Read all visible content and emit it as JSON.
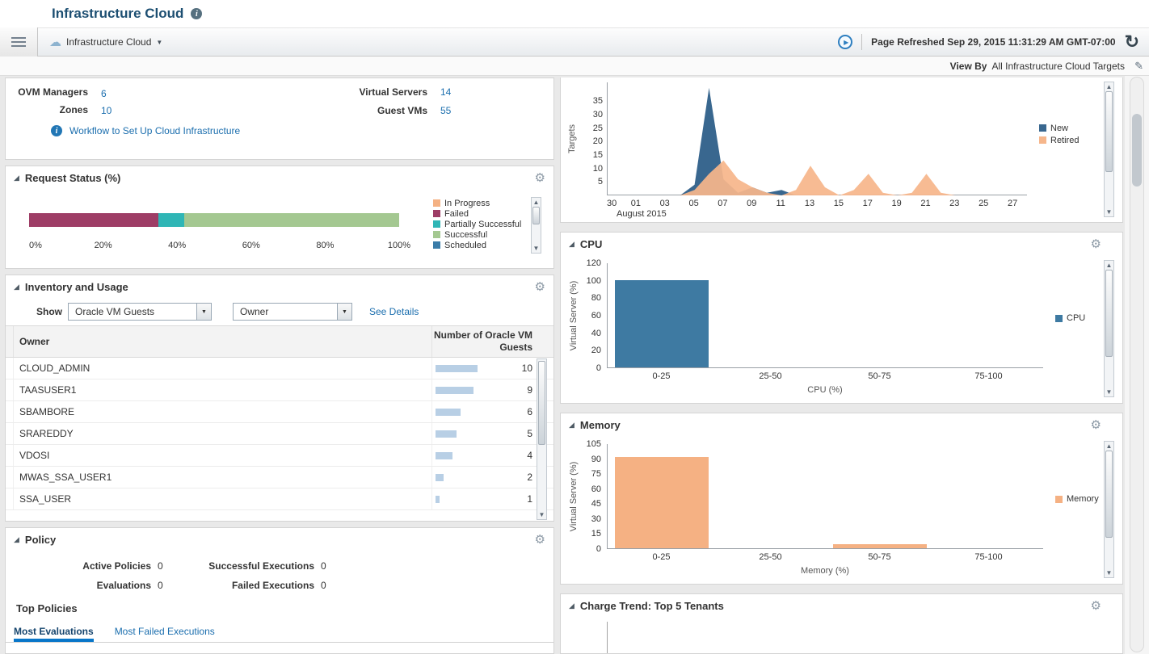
{
  "page": {
    "title": "Infrastructure Cloud"
  },
  "toolbar": {
    "breadcrumb": "Infrastructure Cloud",
    "refreshed_label": "Page Refreshed",
    "refreshed_value": "Sep 29, 2015 11:31:29 AM GMT-07:00"
  },
  "viewbar": {
    "label": "View By",
    "value": "All Infrastructure Cloud Targets"
  },
  "overview": {
    "stats": [
      {
        "label": "OVM Managers",
        "value": "6"
      },
      {
        "label": "Zones",
        "value": "10"
      },
      {
        "label": "Virtual Servers",
        "value": "14"
      },
      {
        "label": "Guest VMs",
        "value": "55"
      }
    ],
    "workflow_link": "Workflow to Set Up Cloud Infrastructure"
  },
  "request_status": {
    "title": "Request Status (%)",
    "axis_ticks": [
      "0%",
      "20%",
      "40%",
      "60%",
      "80%",
      "100%"
    ],
    "legend": [
      {
        "label": "In Progress",
        "color": "#f4b183"
      },
      {
        "label": "Failed",
        "color": "#9e3d66"
      },
      {
        "label": "Partially Successful",
        "color": "#2fb6b6"
      },
      {
        "label": "Successful",
        "color": "#a4c891"
      },
      {
        "label": "Scheduled",
        "color": "#3a7ca8"
      }
    ],
    "chart_data": {
      "type": "bar",
      "stacked": true,
      "xlim": [
        0,
        100
      ],
      "segments": [
        {
          "label": "Failed",
          "pct": 35,
          "color": "#9e3d66"
        },
        {
          "label": "Partially Successful",
          "pct": 7,
          "color": "#2fb6b6"
        },
        {
          "label": "Successful",
          "pct": 58,
          "color": "#a4c891"
        }
      ]
    }
  },
  "inventory": {
    "title": "Inventory and Usage",
    "show_label": "Show",
    "select1": "Oracle VM Guests",
    "select2": "Owner",
    "see_details": "See Details",
    "columns": [
      "Owner",
      "Number of Oracle VM Guests"
    ],
    "bar_color": "#b8cfe5",
    "rows": [
      {
        "owner": "CLOUD_ADMIN",
        "count": 10
      },
      {
        "owner": "TAASUSER1",
        "count": 9
      },
      {
        "owner": "SBAMBORE",
        "count": 6
      },
      {
        "owner": "SRAREDDY",
        "count": 5
      },
      {
        "owner": "VDOSI",
        "count": 4
      },
      {
        "owner": "MWAS_SSA_USER1",
        "count": 2
      },
      {
        "owner": "SSA_USER",
        "count": 1
      }
    ]
  },
  "policy": {
    "title": "Policy",
    "stats": [
      {
        "label": "Active Policies",
        "value": "0"
      },
      {
        "label": "Successful Executions",
        "value": "0"
      },
      {
        "label": "Evaluations",
        "value": "0"
      },
      {
        "label": "Failed Executions",
        "value": "0"
      }
    ],
    "top_policies_label": "Top Policies",
    "tabs": [
      {
        "label": "Most Evaluations",
        "active": true
      },
      {
        "label": "Most Failed Executions",
        "active": false
      }
    ]
  },
  "target_trend": {
    "chart_data": {
      "type": "area",
      "ylabel": "Targets",
      "yticks": [
        5,
        10,
        15,
        20,
        25,
        30,
        35
      ],
      "ymax": 42,
      "x_tick_labels": [
        "30",
        "01",
        "03",
        "05",
        "07",
        "09",
        "11",
        "13",
        "15",
        "17",
        "19",
        "21",
        "23",
        "25",
        "27"
      ],
      "x_axis_note": "August 2015",
      "legend_position": "right",
      "series": [
        {
          "name": "New",
          "color": "#39678f",
          "values": [
            0,
            0,
            0,
            0,
            0,
            0,
            4,
            40,
            6,
            1,
            3,
            1,
            2,
            0,
            0,
            0,
            0,
            0,
            0,
            0,
            0,
            0,
            0,
            0,
            0,
            0,
            0,
            0,
            0,
            0
          ]
        },
        {
          "name": "Retired",
          "color": "#f6b68b",
          "values": [
            0,
            0,
            0,
            0,
            0,
            0,
            2,
            8,
            13,
            6,
            3,
            1,
            0,
            2,
            11,
            3,
            0,
            2,
            8,
            1,
            0,
            1,
            8,
            1,
            0,
            0,
            0,
            0,
            0,
            0
          ]
        }
      ]
    }
  },
  "cpu": {
    "title": "CPU",
    "chart_data": {
      "type": "bar",
      "categories": [
        "0-25",
        "25-50",
        "50-75",
        "75-100"
      ],
      "values": [
        100,
        0,
        0,
        0
      ],
      "yticks": [
        0,
        20,
        40,
        60,
        80,
        100,
        120
      ],
      "ymax": 120,
      "ylabel": "Virtual Server (%)",
      "xlabel": "CPU (%)",
      "legend": "CPU",
      "color": "#3e7aa2"
    }
  },
  "memory": {
    "title": "Memory",
    "chart_data": {
      "type": "bar",
      "categories": [
        "0-25",
        "25-50",
        "50-75",
        "75-100"
      ],
      "values": [
        91,
        0,
        4,
        0
      ],
      "yticks": [
        0,
        15,
        30,
        45,
        60,
        75,
        90,
        105
      ],
      "ymax": 105,
      "ylabel": "Virtual Server (%)",
      "xlabel": "Memory (%)",
      "legend": "Memory",
      "color": "#f5b183"
    }
  },
  "charge_trend": {
    "title": "Charge Trend: Top 5 Tenants"
  }
}
